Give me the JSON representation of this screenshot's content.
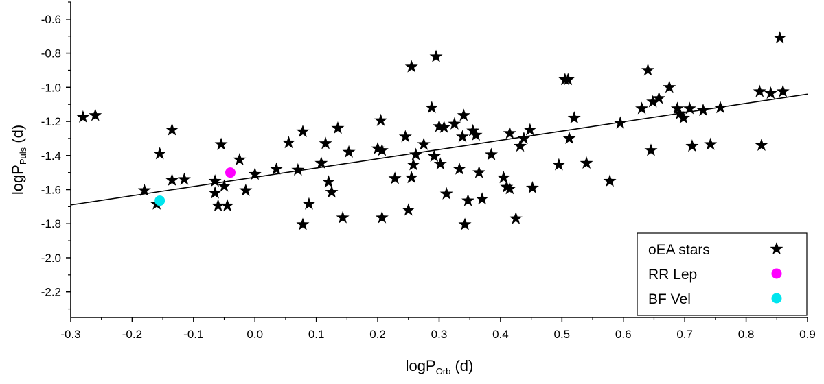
{
  "chart_data": {
    "type": "scatter",
    "title": "",
    "xlabel": {
      "main": "logP",
      "sub": "Orb",
      "unit": " (d)"
    },
    "ylabel": {
      "main": "logP",
      "sub": "Puls",
      "unit": " (d)"
    },
    "xlim": [
      -0.3,
      0.9
    ],
    "ylim": [
      -2.35,
      -0.5
    ],
    "x_ticks": [
      -0.3,
      -0.2,
      -0.1,
      0.0,
      0.1,
      0.2,
      0.3,
      0.4,
      0.5,
      0.6,
      0.7,
      0.8,
      0.9
    ],
    "x_tick_labels": [
      "-0.3",
      "-0.2",
      "-0.1",
      "0.0",
      "0.1",
      "0.2",
      "0.3",
      "0.4",
      "0.5",
      "0.6",
      "0.7",
      "0.8",
      "0.9"
    ],
    "y_ticks": [
      -2.2,
      -2.0,
      -1.8,
      -1.6,
      -1.4,
      -1.2,
      -1.0,
      -0.8,
      -0.6
    ],
    "y_tick_labels": [
      "-2.2",
      "-2.0",
      "-1.8",
      "-1.6",
      "-1.4",
      "-1.2",
      "-1.0",
      "-0.8",
      "-0.6"
    ],
    "grid": false,
    "legend_position": "bottom-right",
    "fit_line": {
      "x": [
        -0.3,
        0.9
      ],
      "y": [
        -1.69,
        -1.04
      ]
    },
    "series": [
      {
        "name": "oEA stars",
        "marker": "star",
        "color": "#000000",
        "points": [
          [
            -0.28,
            -1.175
          ],
          [
            -0.26,
            -1.165
          ],
          [
            -0.18,
            -1.605
          ],
          [
            -0.16,
            -1.685
          ],
          [
            -0.155,
            -1.39
          ],
          [
            -0.135,
            -1.25
          ],
          [
            -0.135,
            -1.545
          ],
          [
            -0.115,
            -1.54
          ],
          [
            -0.065,
            -1.62
          ],
          [
            -0.065,
            -1.55
          ],
          [
            -0.06,
            -1.695
          ],
          [
            -0.055,
            -1.335
          ],
          [
            -0.05,
            -1.58
          ],
          [
            -0.045,
            -1.695
          ],
          [
            -0.025,
            -1.425
          ],
          [
            -0.015,
            -1.605
          ],
          [
            0.0,
            -1.51
          ],
          [
            0.035,
            -1.48
          ],
          [
            0.055,
            -1.325
          ],
          [
            0.07,
            -1.485
          ],
          [
            0.078,
            -1.26
          ],
          [
            0.078,
            -1.805
          ],
          [
            0.088,
            -1.685
          ],
          [
            0.108,
            -1.445
          ],
          [
            0.115,
            -1.33
          ],
          [
            0.12,
            -1.555
          ],
          [
            0.125,
            -1.615
          ],
          [
            0.135,
            -1.24
          ],
          [
            0.143,
            -1.765
          ],
          [
            0.153,
            -1.38
          ],
          [
            0.2,
            -1.36
          ],
          [
            0.205,
            -1.195
          ],
          [
            0.207,
            -1.37
          ],
          [
            0.207,
            -1.765
          ],
          [
            0.228,
            -1.535
          ],
          [
            0.245,
            -1.29
          ],
          [
            0.25,
            -1.72
          ],
          [
            0.255,
            -0.88
          ],
          [
            0.255,
            -1.53
          ],
          [
            0.258,
            -1.455
          ],
          [
            0.262,
            -1.395
          ],
          [
            0.275,
            -1.335
          ],
          [
            0.288,
            -1.12
          ],
          [
            0.292,
            -1.405
          ],
          [
            0.295,
            -0.82
          ],
          [
            0.3,
            -1.23
          ],
          [
            0.302,
            -1.45
          ],
          [
            0.308,
            -1.235
          ],
          [
            0.312,
            -1.625
          ],
          [
            0.325,
            -1.215
          ],
          [
            0.333,
            -1.48
          ],
          [
            0.338,
            -1.29
          ],
          [
            0.34,
            -1.165
          ],
          [
            0.342,
            -1.805
          ],
          [
            0.347,
            -1.665
          ],
          [
            0.355,
            -1.255
          ],
          [
            0.36,
            -1.28
          ],
          [
            0.365,
            -1.5
          ],
          [
            0.37,
            -1.655
          ],
          [
            0.385,
            -1.395
          ],
          [
            0.405,
            -1.53
          ],
          [
            0.41,
            -1.585
          ],
          [
            0.415,
            -1.27
          ],
          [
            0.415,
            -1.595
          ],
          [
            0.425,
            -1.77
          ],
          [
            0.432,
            -1.345
          ],
          [
            0.438,
            -1.3
          ],
          [
            0.448,
            -1.25
          ],
          [
            0.452,
            -1.59
          ],
          [
            0.495,
            -1.455
          ],
          [
            0.505,
            -0.955
          ],
          [
            0.51,
            -0.955
          ],
          [
            0.512,
            -1.3
          ],
          [
            0.52,
            -1.18
          ],
          [
            0.54,
            -1.445
          ],
          [
            0.578,
            -1.55
          ],
          [
            0.595,
            -1.21
          ],
          [
            0.63,
            -1.125
          ],
          [
            0.64,
            -0.9
          ],
          [
            0.645,
            -1.37
          ],
          [
            0.648,
            -1.085
          ],
          [
            0.658,
            -1.065
          ],
          [
            0.675,
            -1.0
          ],
          [
            0.688,
            -1.125
          ],
          [
            0.692,
            -1.155
          ],
          [
            0.698,
            -1.18
          ],
          [
            0.708,
            -1.125
          ],
          [
            0.712,
            -1.345
          ],
          [
            0.73,
            -1.135
          ],
          [
            0.742,
            -1.335
          ],
          [
            0.758,
            -1.12
          ],
          [
            0.822,
            -1.025
          ],
          [
            0.825,
            -1.34
          ],
          [
            0.84,
            -1.035
          ],
          [
            0.855,
            -0.71
          ],
          [
            0.86,
            -1.025
          ]
        ]
      },
      {
        "name": "RR Lep",
        "marker": "circle",
        "color": "#ff00ff",
        "points": [
          [
            -0.04,
            -1.5
          ]
        ]
      },
      {
        "name": "BF Vel",
        "marker": "circle",
        "color": "#00e5ee",
        "points": [
          [
            -0.155,
            -1.665
          ]
        ]
      }
    ]
  }
}
